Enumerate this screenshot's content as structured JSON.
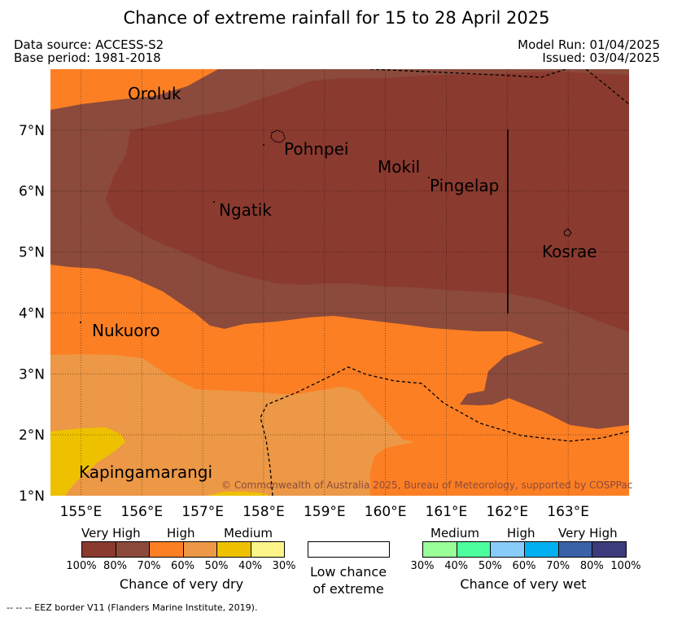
{
  "title": "Chance of extreme rainfall for 15 to 28 April 2025",
  "header": {
    "data_source": "Data source: ACCESS-S2",
    "base_period": "Base period: 1981-2018",
    "model_run": "Model Run: 01/04/2025",
    "issued": "Issued: 03/04/2025"
  },
  "map": {
    "lon_range": [
      154.5,
      164.0
    ],
    "lat_range": [
      1.0,
      8.0
    ],
    "lon_ticks": [
      "155°E",
      "156°E",
      "157°E",
      "158°E",
      "159°E",
      "160°E",
      "161°E",
      "162°E",
      "163°E"
    ],
    "lat_ticks": [
      "1°N",
      "2°N",
      "3°N",
      "4°N",
      "5°N",
      "6°N",
      "7°N"
    ],
    "places": {
      "oroluk": "Oroluk",
      "pohnpei": "Pohnpei",
      "mokil": "Mokil",
      "pingelap": "Pingelap",
      "ngatik": "Ngatik",
      "kosrae": "Kosrae",
      "nukuoro": "Nukuoro",
      "kapingamarangi": "Kapingamarangi"
    },
    "copyright": "© Commonwealth of Australia 2025, Bureau of Meteorology, supported by COSPPac",
    "colors": {
      "very_high_dry_80_100": "#8b3a2f",
      "very_high_dry_70_80": "#8b4a3c",
      "high_dry_60_70": "#fc7f24",
      "high_dry_50_60": "#ec9846",
      "medium_dry_40_50": "#eec100",
      "medium_dry_30_40": "#fdf58a"
    }
  },
  "legend": {
    "dry": {
      "headings": [
        "Very High",
        "High",
        "Medium"
      ],
      "colors": [
        "#8b3a2f",
        "#8b4a3c",
        "#fc7f24",
        "#ec9846",
        "#eec100",
        "#fdf58a"
      ],
      "ticks": [
        "100%",
        "80%",
        "70%",
        "60%",
        "50%",
        "40%",
        "30%"
      ],
      "caption": "Chance of very dry"
    },
    "low": {
      "color": "#ffffff",
      "caption_line1": "Low chance",
      "caption_line2": "of extreme"
    },
    "wet": {
      "headings": [
        "Medium",
        "High",
        "Very High"
      ],
      "colors": [
        "#99ff99",
        "#4dfe9e",
        "#88ccfa",
        "#00b0f0",
        "#3a62a6",
        "#3c3c7c"
      ],
      "ticks": [
        "30%",
        "40%",
        "50%",
        "60%",
        "70%",
        "80%",
        "100%"
      ],
      "caption": "Chance of very wet"
    }
  },
  "footnote": "-- -- -- EEZ border V11 (Flanders Marine Institute, 2019)."
}
